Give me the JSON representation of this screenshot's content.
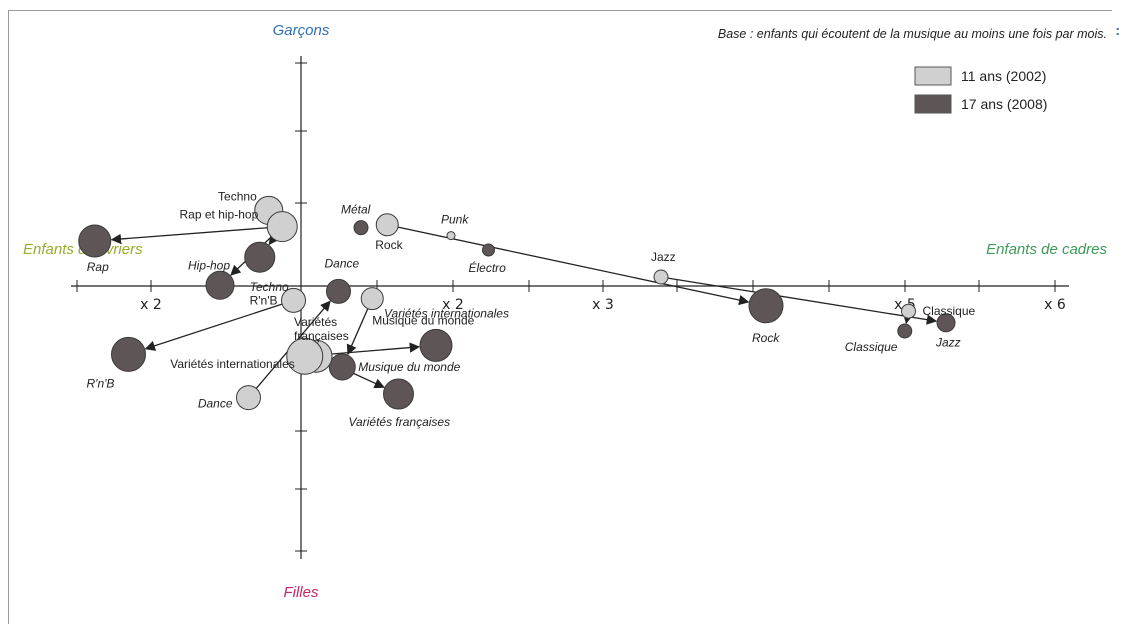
{
  "page": {
    "title": "",
    "corner_mark": ":"
  },
  "chart_data": {
    "type": "scatter",
    "title": "",
    "note": "Base : enfants qui écoutent de la musique au moins une fois par mois.",
    "axes": {
      "top_label": "Garçons",
      "bottom_label": "Filles",
      "left_label": "Enfants d'ouvriers",
      "right_label": "Enfants de cadres",
      "x_ticks": [
        "x 2",
        "x 2",
        "x 3",
        "x 5",
        "x 6"
      ]
    },
    "colors": {
      "age_11": "#d0d0d0",
      "age_17": "#5e5656",
      "top_label": "#2e6fb0",
      "bottom_label": "#c0286e",
      "left_label": "#9aab2d",
      "right_label": "#3e9a58"
    },
    "legend": {
      "placement": "top-right",
      "entries": [
        {
          "label": "11 ans (2002)",
          "color": "#d0d0d0"
        },
        {
          "label": "17 ans (2008)",
          "color": "#5e5656"
        }
      ]
    },
    "series": [
      {
        "name": "11 ans (2002)",
        "points": [
          {
            "label": "Techno",
            "x": -0.43,
            "y": 2.1,
            "r": 14
          },
          {
            "label": "Rap et hip-hop",
            "x": -0.25,
            "y": 1.65,
            "r": 15
          },
          {
            "label": "R'n'B",
            "x": -0.1,
            "y": -0.4,
            "r": 12
          },
          {
            "label": "Musique du monde",
            "x": 0.95,
            "y": -0.35,
            "r": 11
          },
          {
            "label": "Rock",
            "x": 1.15,
            "y": 1.7,
            "r": 11
          },
          {
            "label": "Punk",
            "x": 2.0,
            "y": 1.4,
            "r": 4
          },
          {
            "label": "Jazz",
            "x": 4.8,
            "y": 0.25,
            "r": 7
          },
          {
            "label": "Classique",
            "x": 8.1,
            "y": -0.7,
            "r": 7
          },
          {
            "label": "Variétés françaises",
            "x": 0.2,
            "y": -1.95,
            "r": 16
          },
          {
            "label": "Variétés internationales",
            "x": 0.05,
            "y": -1.95,
            "r": 18
          },
          {
            "label": "Dance",
            "x": -0.7,
            "y": -3.1,
            "r": 12
          }
        ]
      },
      {
        "name": "17 ans (2008)",
        "points": [
          {
            "label": "Rap",
            "x": -2.75,
            "y": 1.25,
            "r": 16
          },
          {
            "label": "Hip-hop",
            "x": -1.08,
            "y": 0.02,
            "r": 14
          },
          {
            "label": "Techno",
            "x": -0.55,
            "y": 0.8,
            "r": 15
          },
          {
            "label": "Dance",
            "x": 0.5,
            "y": -0.15,
            "r": 12
          },
          {
            "label": "Métal",
            "x": 0.8,
            "y": 1.62,
            "r": 7
          },
          {
            "label": "Électro",
            "x": 2.5,
            "y": 1.0,
            "r": 6
          },
          {
            "label": "Rock",
            "x": 6.2,
            "y": -0.55,
            "r": 17
          },
          {
            "label": "Classique",
            "x": 8.05,
            "y": -1.25,
            "r": 7
          },
          {
            "label": "Jazz",
            "x": 8.6,
            "y": -1.02,
            "r": 9
          },
          {
            "label": "R'n'B",
            "x": -2.3,
            "y": -1.9,
            "r": 17
          },
          {
            "label": "Variétés internationales",
            "x": 1.8,
            "y": -1.65,
            "r": 16
          },
          {
            "label": "Musique du monde",
            "x": 0.55,
            "y": -2.25,
            "r": 13
          },
          {
            "label": "Variétés françaises",
            "x": 1.3,
            "y": -3.0,
            "r": 15
          }
        ]
      }
    ],
    "transitions": [
      {
        "from": "Rap et hip-hop",
        "to": "Rap"
      },
      {
        "from": "Rap et hip-hop",
        "to": "Hip-hop"
      },
      {
        "from": "Rap et hip-hop",
        "to": "Techno"
      },
      {
        "from": "R'n'B",
        "to": "R'n'B"
      },
      {
        "from": "Dance",
        "to": "Dance"
      },
      {
        "from": "Musique du monde",
        "to": "Musique du monde"
      },
      {
        "from": "Rock",
        "to": "Rock"
      },
      {
        "from": "Jazz",
        "to": "Jazz"
      },
      {
        "from": "Classique",
        "to": "Classique"
      },
      {
        "from": "Variétés internationales",
        "to": "Variétés internationales"
      },
      {
        "from": "Variétés françaises",
        "to": "Variétés françaises"
      }
    ]
  }
}
